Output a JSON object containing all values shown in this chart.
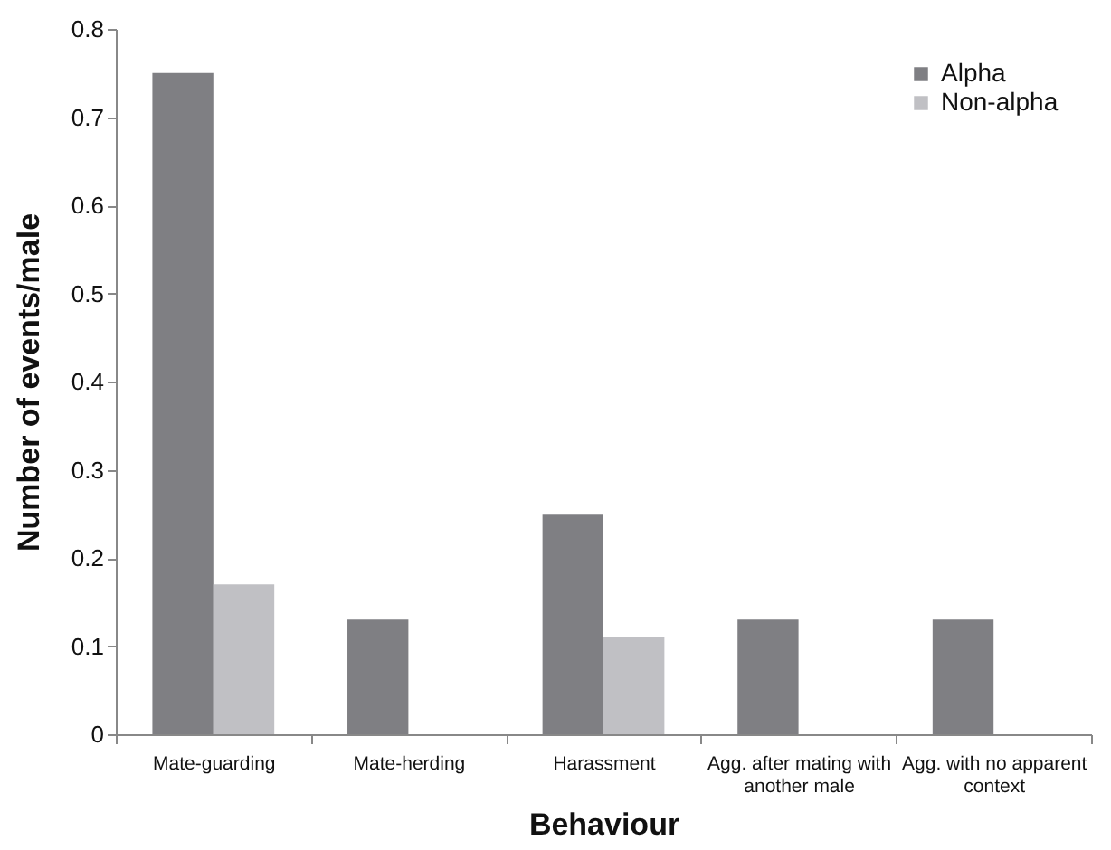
{
  "chart_data": {
    "type": "bar",
    "xlabel": "Behaviour",
    "ylabel": "Number of events/male",
    "categories": [
      "Mate-guarding",
      "Mate-herding",
      "Harassment",
      "Agg. after mating with another male",
      "Agg. with no apparent context"
    ],
    "series": [
      {
        "name": "Alpha",
        "color": "#7f7f83",
        "values": [
          0.75,
          0.13,
          0.25,
          0.13,
          0.13
        ]
      },
      {
        "name": "Non-alpha",
        "color": "#c0c0c4",
        "values": [
          0.17,
          0,
          0.11,
          0,
          0
        ]
      }
    ],
    "ylim": [
      0,
      0.8
    ],
    "yticks": [
      0,
      0.1,
      0.2,
      0.3,
      0.4,
      0.5,
      0.6,
      0.7,
      0.8
    ],
    "grid": false,
    "legend": "top right"
  }
}
